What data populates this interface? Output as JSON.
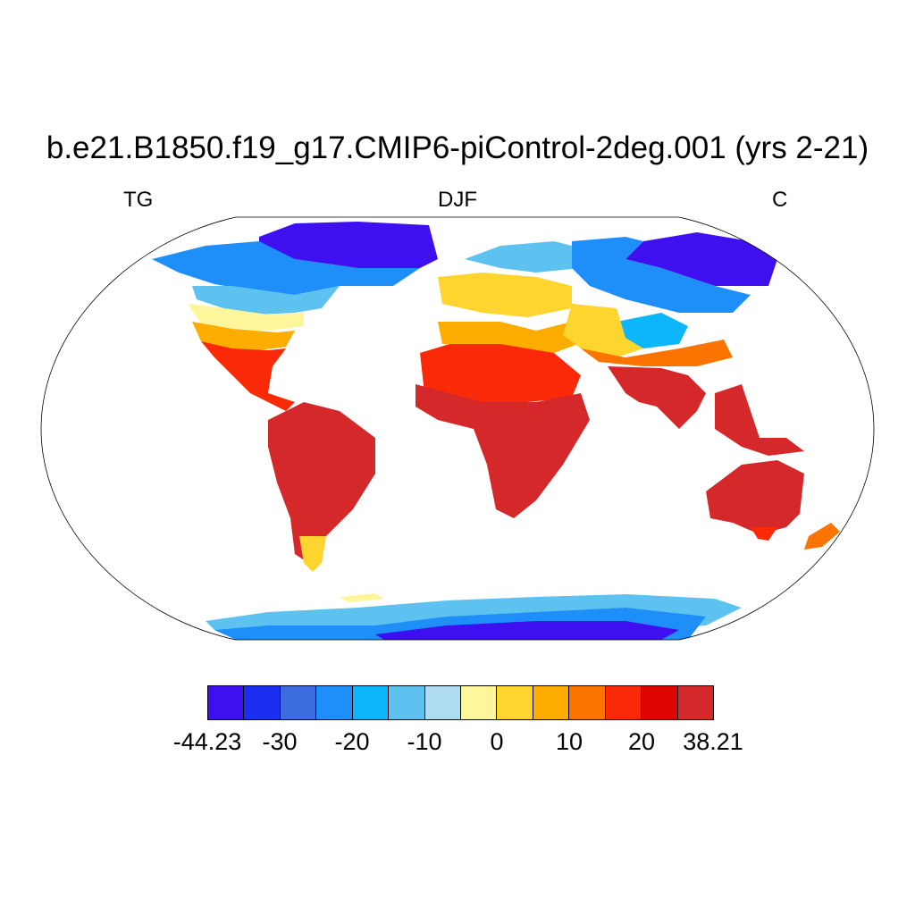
{
  "title": "b.e21.B1850.f19_g17.CMIP6-piControl-2deg.001 (yrs 2-21)",
  "left_label": "TG",
  "center_label": "DJF",
  "right_label": "C",
  "colorbar": {
    "colors": [
      "#3e10f0",
      "#1c2ff0",
      "#3d6ce0",
      "#1e8ef8",
      "#0cb6f8",
      "#5ec2f0",
      "#aedbf0",
      "#fff59a",
      "#fdd52e",
      "#fdac00",
      "#fb7400",
      "#fa2a08",
      "#e00400",
      "#d4282a"
    ],
    "labels": [
      "-44.23",
      "-30",
      "-20",
      "-10",
      "0",
      "10",
      "20",
      "38.21"
    ]
  },
  "chart_data": {
    "type": "heatmap",
    "variable": "TG",
    "season": "DJF",
    "units": "C",
    "value_range": [
      -44.23,
      38.21
    ],
    "contour_levels": [
      -30,
      -25,
      -20,
      -15,
      -10,
      -5,
      0,
      5,
      10,
      15,
      20,
      25,
      30
    ],
    "projection": "Robinson",
    "grid": "none",
    "colorbar_position": "bottom"
  }
}
